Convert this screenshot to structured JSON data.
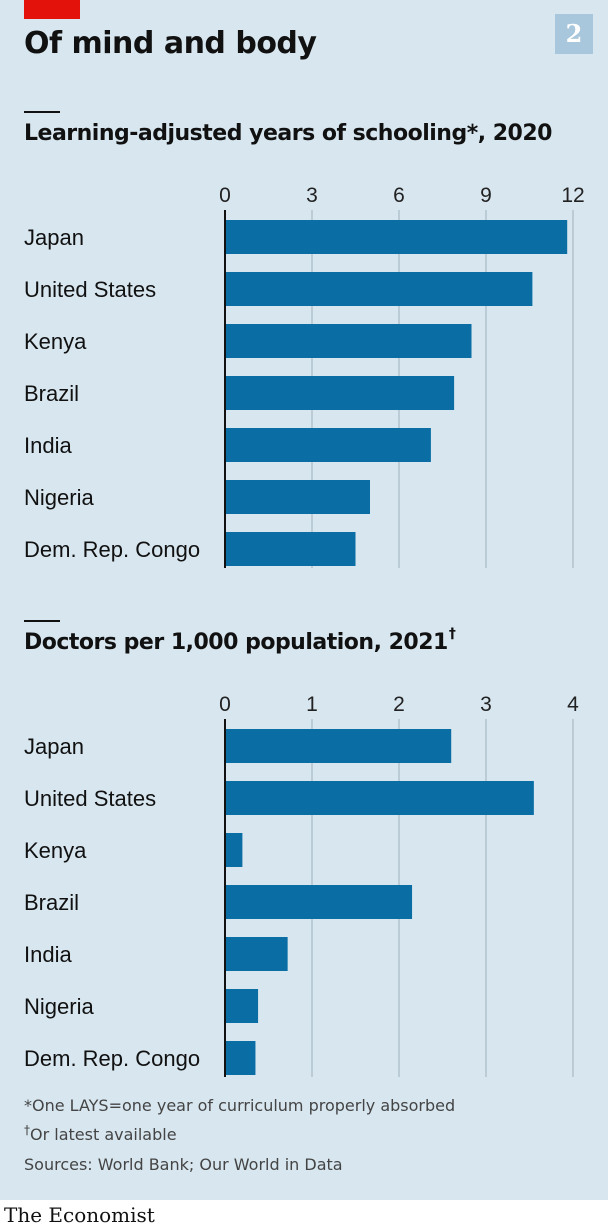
{
  "header": {
    "title": "Of mind and body",
    "badge": "2"
  },
  "colors": {
    "bar": "#0a6ea5",
    "background": "#d7e6ef",
    "gridline": "#9fb1bc",
    "accent": "#e3120b"
  },
  "chart_data": [
    {
      "type": "bar",
      "orientation": "horizontal",
      "title": "Learning-adjusted years of schooling*, 2020",
      "categories": [
        "Japan",
        "United States",
        "Kenya",
        "Brazil",
        "India",
        "Nigeria",
        "Dem. Rep. Congo"
      ],
      "values": [
        11.8,
        10.6,
        8.5,
        7.9,
        7.1,
        5.0,
        4.5
      ],
      "xticks": [
        0,
        3,
        6,
        9,
        12
      ],
      "xlim": [
        0,
        12
      ],
      "grid": true
    },
    {
      "type": "bar",
      "orientation": "horizontal",
      "title": "Doctors per 1,000 population, 2021",
      "title_mark": "†",
      "categories": [
        "Japan",
        "United States",
        "Kenya",
        "Brazil",
        "India",
        "Nigeria",
        "Dem. Rep. Congo"
      ],
      "values": [
        2.6,
        3.55,
        0.2,
        2.15,
        0.72,
        0.38,
        0.35
      ],
      "xticks": [
        0,
        1,
        2,
        3,
        4
      ],
      "xlim": [
        0,
        4
      ],
      "grid": true
    }
  ],
  "footnotes": {
    "note1": "*One LAYS=one year of curriculum properly absorbed",
    "note2_mark": "†",
    "note2": "Or latest available",
    "sources": "Sources: World Bank; Our World in Data"
  },
  "brand": "The Economist"
}
